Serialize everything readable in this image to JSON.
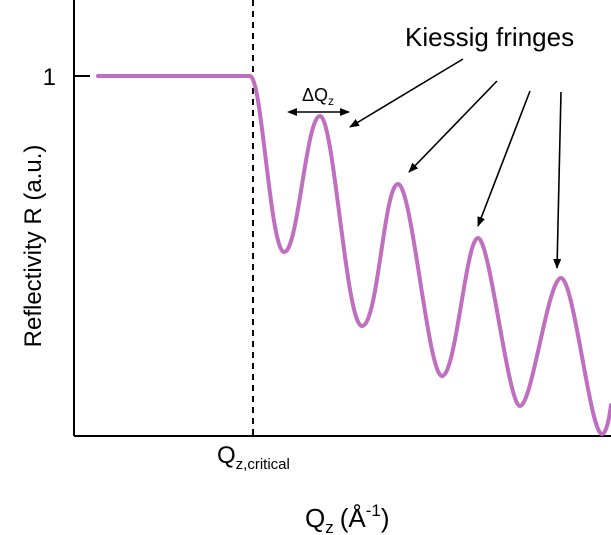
{
  "colors": {
    "curve": "#c06ec0",
    "axis": "#000000",
    "background": "#ffffff"
  },
  "labels": {
    "y_axis": "Reflectivity R (a.u.)",
    "y_tick": "1",
    "x_axis_main": "Q",
    "x_axis_sub": "z",
    "x_axis_unit_open": "(",
    "x_axis_unit": "Å",
    "x_axis_sup": "-1",
    "x_axis_unit_close": ")",
    "critical_main": "Q",
    "critical_sub": "z,critical",
    "delta_main": "ΔQ",
    "delta_sub": "z",
    "fringes": "Kiessig fringes"
  }
}
